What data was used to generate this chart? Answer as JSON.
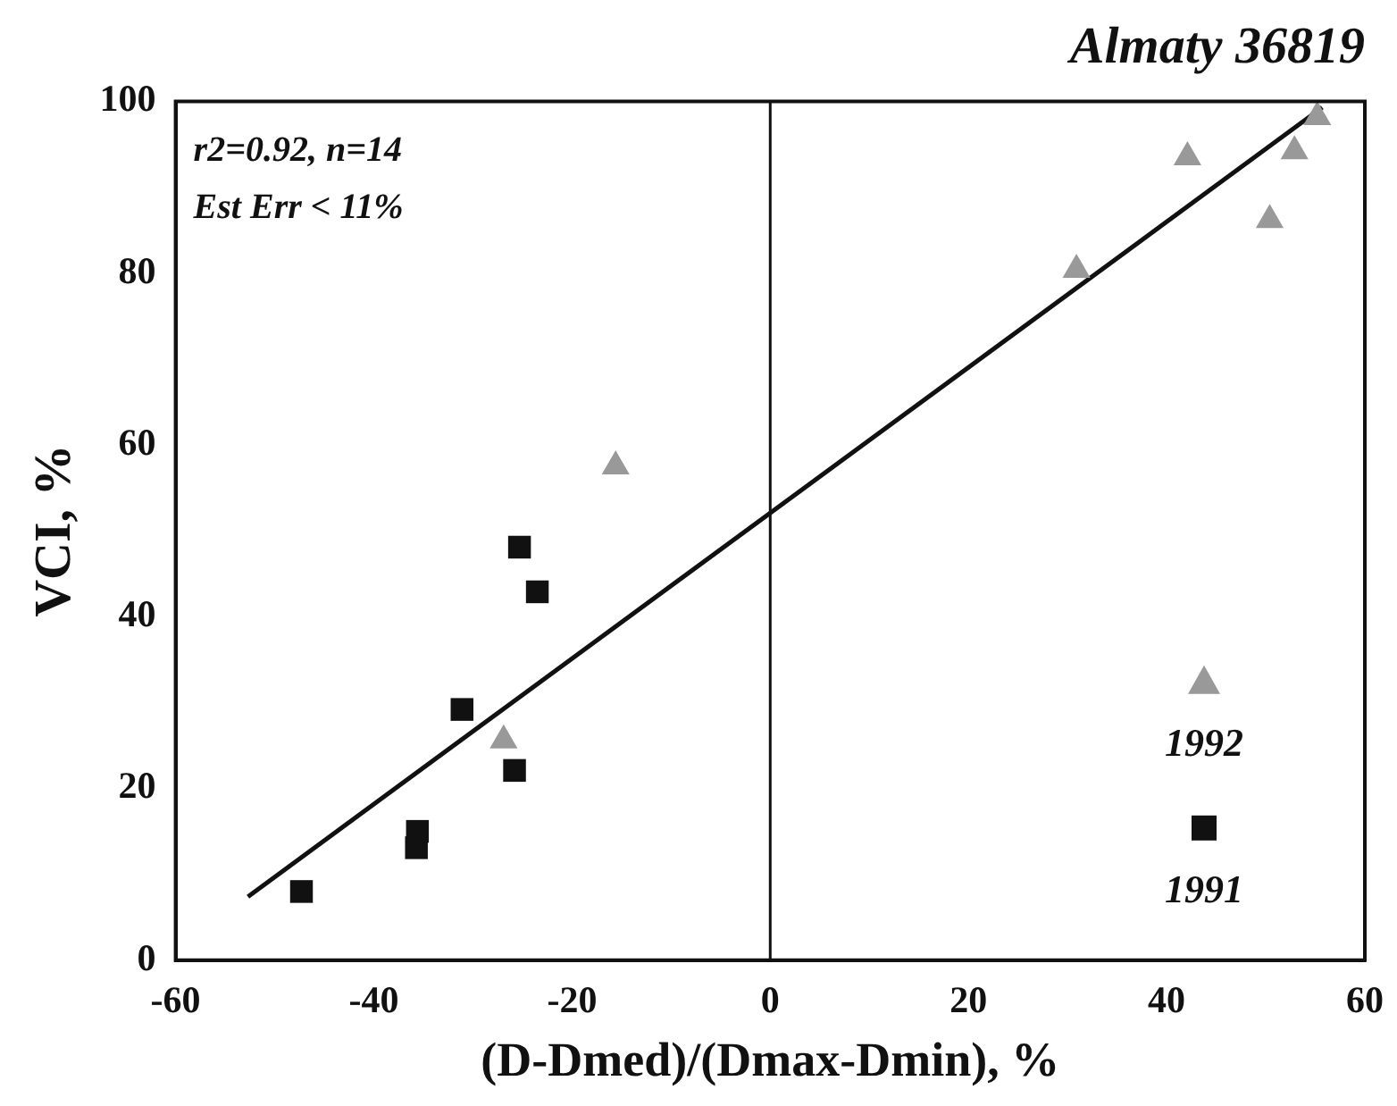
{
  "chart_data": {
    "type": "scatter",
    "title": "Almaty 36819",
    "xlabel": "(D-Dmed)/(Dmax-Dmin), %",
    "ylabel": "VCI, %",
    "annotations": [
      "r2=0.92, n=14",
      "Est Err < 11%"
    ],
    "series": [
      {
        "name": "1992",
        "color": "#999999",
        "marker": "triangle",
        "x": [
          -26.9,
          -15.6,
          30.9,
          42.1,
          50.4,
          52.9,
          55.2
        ],
        "values": [
          25.6,
          57.5,
          80.4,
          93.5,
          86.2,
          94.2,
          98.2
        ]
      },
      {
        "name": "1991",
        "color": "#111111",
        "marker": "square",
        "x": [
          -47.3,
          -35.7,
          -35.6,
          -31.1,
          -25.8,
          -25.3,
          -23.5
        ],
        "values": [
          8.0,
          13.1,
          15.0,
          29.2,
          22.1,
          48.1,
          42.9
        ]
      },
      {
        "type": "line",
        "color": "#111111",
        "marker": "none",
        "line_style": "solid",
        "x": [
          -52.7,
          55.7
        ],
        "values": [
          7.4,
          99.3
        ]
      }
    ],
    "ref_lines": [
      {
        "axis": "x",
        "value": 0,
        "color": "#111111"
      }
    ],
    "xlim": [
      -60,
      60
    ],
    "xticks": [
      -60,
      -40,
      -20,
      0,
      20,
      40,
      60
    ],
    "ylim": [
      0,
      100
    ],
    "yticks": [
      0,
      20,
      40,
      60,
      80,
      100
    ],
    "grid": false,
    "legend": "bottom right"
  }
}
